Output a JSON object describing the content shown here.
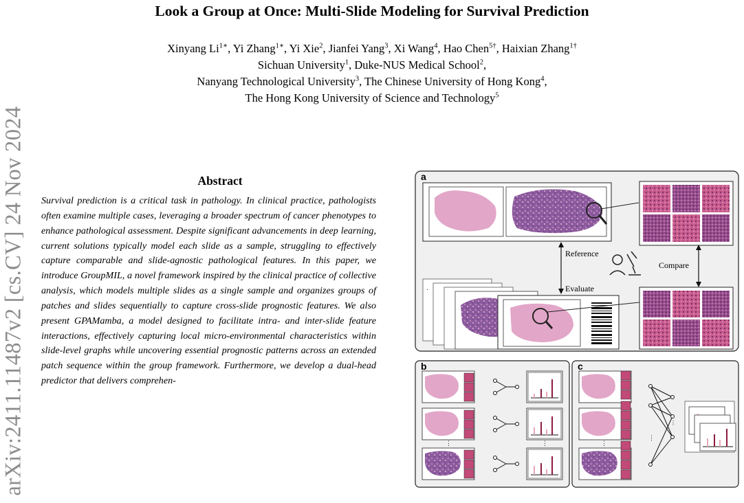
{
  "paper": {
    "title": "Look a Group at Once: Multi-Slide Modeling for Survival Prediction",
    "authors_line": [
      {
        "name": "Xinyang Li",
        "sup": "1∗"
      },
      {
        "name": "Yi Zhang",
        "sup": "1∗"
      },
      {
        "name": "Yi Xie",
        "sup": "2"
      },
      {
        "name": "Jianfei Yang",
        "sup": "3"
      },
      {
        "name": "Xi Wang",
        "sup": "4"
      },
      {
        "name": "Hao Chen",
        "sup": "5†"
      },
      {
        "name": "Haixian Zhang",
        "sup": "1†"
      }
    ],
    "affiliations": [
      [
        {
          "name": "Sichuan University",
          "sup": "1"
        },
        {
          "name": "Duke-NUS Medical School",
          "sup": "2"
        }
      ],
      [
        {
          "name": "Nanyang Technological University",
          "sup": "3"
        },
        {
          "name": "The Chinese University of Hong Kong",
          "sup": "4"
        }
      ],
      [
        {
          "name": "The Hong Kong University of Science and Technology",
          "sup": "5"
        }
      ]
    ],
    "arxiv_id": "arXiv:2411.11487v2  [cs.CV]  24 Nov 2024",
    "abstract_heading": "Abstract",
    "abstract_text": "Survival prediction is a critical task in pathology. In clinical practice, pathologists often examine multiple cases, leveraging a broader spectrum of cancer phenotypes to enhance pathological assessment. Despite significant advancements in deep learning, current solutions typically model each slide as a sample, struggling to effectively capture comparable and slide-agnostic pathological features. In this paper, we introduce GroupMIL, a novel framework inspired by the clinical practice of collective analysis, which models multiple slides as a single sample and organizes groups of patches and slides sequentially to capture cross-slide prognostic features. We also present GPAMamba, a model designed to facilitate intra- and inter-slide feature interactions, effectively capturing local micro-environmental characteristics within slide-level graphs while uncovering essential prognostic patterns across an extended patch sequence within the group framework. Furthermore, we develop a dual-head predictor that delivers comprehen-"
  },
  "figure": {
    "panel_a_label": "a",
    "panel_b_label": "b",
    "panel_c_label": "c",
    "reference_label": "Reference",
    "evaluate_label": "Evaluate",
    "compare_label": "Compare",
    "colors": {
      "panel_bg": "#f0f0f0",
      "tissue_pink": "#e2a6c8",
      "tissue_purple": "#8a5a9e",
      "patch_pink": "#c24a78",
      "bar_dark": "#8e1b3e",
      "bar_light": "#e8a8b8"
    },
    "icons": [
      "magnifier-icon",
      "pathologist-microscope-icon",
      "barcode-icon"
    ]
  }
}
